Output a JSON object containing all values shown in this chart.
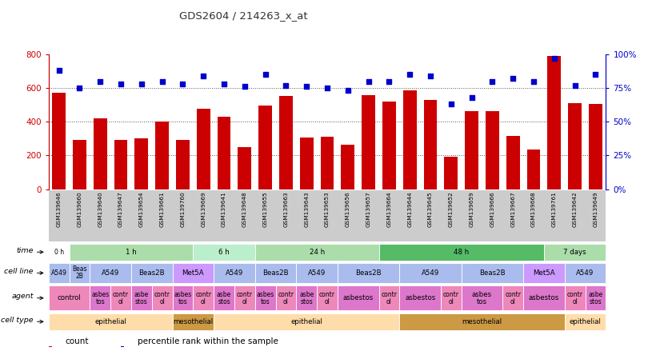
{
  "title": "GDS2604 / 214263_x_at",
  "samples": [
    "GSM139646",
    "GSM139660",
    "GSM139640",
    "GSM139647",
    "GSM139654",
    "GSM139661",
    "GSM139760",
    "GSM139669",
    "GSM139641",
    "GSM139648",
    "GSM139655",
    "GSM139663",
    "GSM139643",
    "GSM139653",
    "GSM139656",
    "GSM139657",
    "GSM139664",
    "GSM139644",
    "GSM139645",
    "GSM139652",
    "GSM139659",
    "GSM139666",
    "GSM139667",
    "GSM139668",
    "GSM139761",
    "GSM139642",
    "GSM139649"
  ],
  "counts": [
    570,
    290,
    420,
    290,
    300,
    400,
    290,
    475,
    430,
    250,
    495,
    555,
    305,
    310,
    265,
    560,
    520,
    585,
    530,
    195,
    465,
    465,
    315,
    235,
    790,
    510,
    505
  ],
  "percentiles": [
    88,
    75,
    80,
    78,
    78,
    80,
    78,
    84,
    78,
    76,
    85,
    77,
    76,
    75,
    73,
    80,
    80,
    85,
    84,
    63,
    68,
    80,
    82,
    80,
    97,
    77,
    85
  ],
  "bar_color": "#cc0000",
  "dot_color": "#0000cc",
  "ylim_left": [
    0,
    800
  ],
  "ylim_right": [
    0,
    100
  ],
  "yticks_left": [
    0,
    200,
    400,
    600,
    800
  ],
  "yticks_right": [
    0,
    25,
    50,
    75,
    100
  ],
  "left_tick_labels": [
    "0",
    "200",
    "400",
    "600",
    "800"
  ],
  "right_tick_labels": [
    "0%",
    "25%",
    "50%",
    "75%",
    "100%"
  ],
  "grid_values": [
    200,
    400,
    600
  ],
  "time_groups": [
    {
      "label": "0 h",
      "start": 0,
      "end": 1,
      "color": "#ffffff"
    },
    {
      "label": "1 h",
      "start": 1,
      "end": 7,
      "color": "#aaddaa"
    },
    {
      "label": "6 h",
      "start": 7,
      "end": 10,
      "color": "#bbeecc"
    },
    {
      "label": "24 h",
      "start": 10,
      "end": 16,
      "color": "#aaddaa"
    },
    {
      "label": "48 h",
      "start": 16,
      "end": 24,
      "color": "#55bb66"
    },
    {
      "label": "7 days",
      "start": 24,
      "end": 27,
      "color": "#aaddaa"
    }
  ],
  "cell_line_groups": [
    {
      "label": "A549",
      "start": 0,
      "end": 1,
      "color": "#aabbee"
    },
    {
      "label": "Beas\n2B",
      "start": 1,
      "end": 2,
      "color": "#aabbee"
    },
    {
      "label": "A549",
      "start": 2,
      "end": 4,
      "color": "#aabbee"
    },
    {
      "label": "Beas2B",
      "start": 4,
      "end": 6,
      "color": "#aabbee"
    },
    {
      "label": "Met5A",
      "start": 6,
      "end": 8,
      "color": "#cc99ff"
    },
    {
      "label": "A549",
      "start": 8,
      "end": 10,
      "color": "#aabbee"
    },
    {
      "label": "Beas2B",
      "start": 10,
      "end": 12,
      "color": "#aabbee"
    },
    {
      "label": "A549",
      "start": 12,
      "end": 14,
      "color": "#aabbee"
    },
    {
      "label": "Beas2B",
      "start": 14,
      "end": 17,
      "color": "#aabbee"
    },
    {
      "label": "A549",
      "start": 17,
      "end": 20,
      "color": "#aabbee"
    },
    {
      "label": "Beas2B",
      "start": 20,
      "end": 23,
      "color": "#aabbee"
    },
    {
      "label": "Met5A",
      "start": 23,
      "end": 25,
      "color": "#cc99ff"
    },
    {
      "label": "A549",
      "start": 25,
      "end": 27,
      "color": "#aabbee"
    }
  ],
  "agent_groups": [
    {
      "label": "control",
      "start": 0,
      "end": 2,
      "color": "#ee88bb"
    },
    {
      "label": "asbes\ntos",
      "start": 2,
      "end": 3,
      "color": "#dd77cc"
    },
    {
      "label": "contr\nol",
      "start": 3,
      "end": 4,
      "color": "#ee88bb"
    },
    {
      "label": "asbe\nstos",
      "start": 4,
      "end": 5,
      "color": "#dd77cc"
    },
    {
      "label": "contr\nol",
      "start": 5,
      "end": 6,
      "color": "#ee88bb"
    },
    {
      "label": "asbes\ntos",
      "start": 6,
      "end": 7,
      "color": "#dd77cc"
    },
    {
      "label": "contr\nol",
      "start": 7,
      "end": 8,
      "color": "#ee88bb"
    },
    {
      "label": "asbe\nstos",
      "start": 8,
      "end": 9,
      "color": "#dd77cc"
    },
    {
      "label": "contr\nol",
      "start": 9,
      "end": 10,
      "color": "#ee88bb"
    },
    {
      "label": "asbes\ntos",
      "start": 10,
      "end": 11,
      "color": "#dd77cc"
    },
    {
      "label": "contr\nol",
      "start": 11,
      "end": 12,
      "color": "#ee88bb"
    },
    {
      "label": "asbe\nstos",
      "start": 12,
      "end": 13,
      "color": "#dd77cc"
    },
    {
      "label": "contr\nol",
      "start": 13,
      "end": 14,
      "color": "#ee88bb"
    },
    {
      "label": "asbestos",
      "start": 14,
      "end": 16,
      "color": "#dd77cc"
    },
    {
      "label": "contr\nol",
      "start": 16,
      "end": 17,
      "color": "#ee88bb"
    },
    {
      "label": "asbestos",
      "start": 17,
      "end": 19,
      "color": "#dd77cc"
    },
    {
      "label": "contr\nol",
      "start": 19,
      "end": 20,
      "color": "#ee88bb"
    },
    {
      "label": "asbes\ntos",
      "start": 20,
      "end": 22,
      "color": "#dd77cc"
    },
    {
      "label": "contr\nol",
      "start": 22,
      "end": 23,
      "color": "#ee88bb"
    },
    {
      "label": "asbestos",
      "start": 23,
      "end": 25,
      "color": "#dd77cc"
    },
    {
      "label": "contr\nol",
      "start": 25,
      "end": 26,
      "color": "#ee88bb"
    },
    {
      "label": "asbe\nstos",
      "start": 26,
      "end": 27,
      "color": "#dd77cc"
    }
  ],
  "cell_type_groups": [
    {
      "label": "epithelial",
      "start": 0,
      "end": 6,
      "color": "#ffddaa"
    },
    {
      "label": "mesothelial",
      "start": 6,
      "end": 8,
      "color": "#cc9944"
    },
    {
      "label": "epithelial",
      "start": 8,
      "end": 17,
      "color": "#ffddaa"
    },
    {
      "label": "mesothelial",
      "start": 17,
      "end": 25,
      "color": "#cc9944"
    },
    {
      "label": "epithelial",
      "start": 25,
      "end": 27,
      "color": "#ffddaa"
    }
  ]
}
